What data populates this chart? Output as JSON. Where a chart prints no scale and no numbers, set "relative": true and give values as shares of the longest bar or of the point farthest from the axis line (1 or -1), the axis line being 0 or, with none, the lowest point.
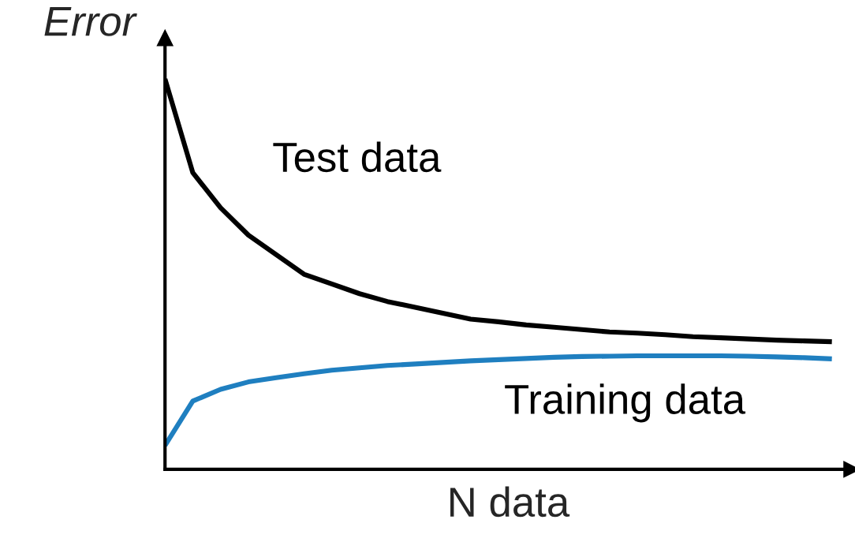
{
  "chart_data": {
    "type": "line",
    "relative": true,
    "xlabel": "N data",
    "ylabel": "Error",
    "legend": false,
    "grid": false,
    "marker": "none",
    "line_style": "solid",
    "categories": [
      null,
      null,
      null,
      null,
      null,
      null,
      null,
      null,
      null,
      null,
      null,
      null,
      null,
      null,
      null,
      null,
      null,
      null,
      null,
      null,
      null,
      null,
      null,
      null,
      null
    ],
    "series": [
      {
        "name": "Test data",
        "color": "#000000",
        "values": [
          1,
          0.76,
          0.67,
          0.6,
          0.55,
          0.5,
          0.475,
          0.45,
          0.43,
          0.415,
          0.4,
          0.385,
          0.378,
          0.37,
          0.364,
          0.358,
          0.352,
          0.349,
          0.345,
          0.34,
          0.337,
          0.334,
          0.331,
          0.329,
          0.327
        ]
      },
      {
        "name": "Training data",
        "color": "#1f7fc0",
        "values": [
          0.061,
          0.175,
          0.205,
          0.224,
          0.235,
          0.245,
          0.254,
          0.26,
          0.266,
          0.27,
          0.274,
          0.278,
          0.281,
          0.284,
          0.287,
          0.289,
          0.29,
          0.291,
          0.291,
          0.291,
          0.291,
          0.29,
          0.288,
          0.286,
          0.283
        ]
      }
    ]
  }
}
